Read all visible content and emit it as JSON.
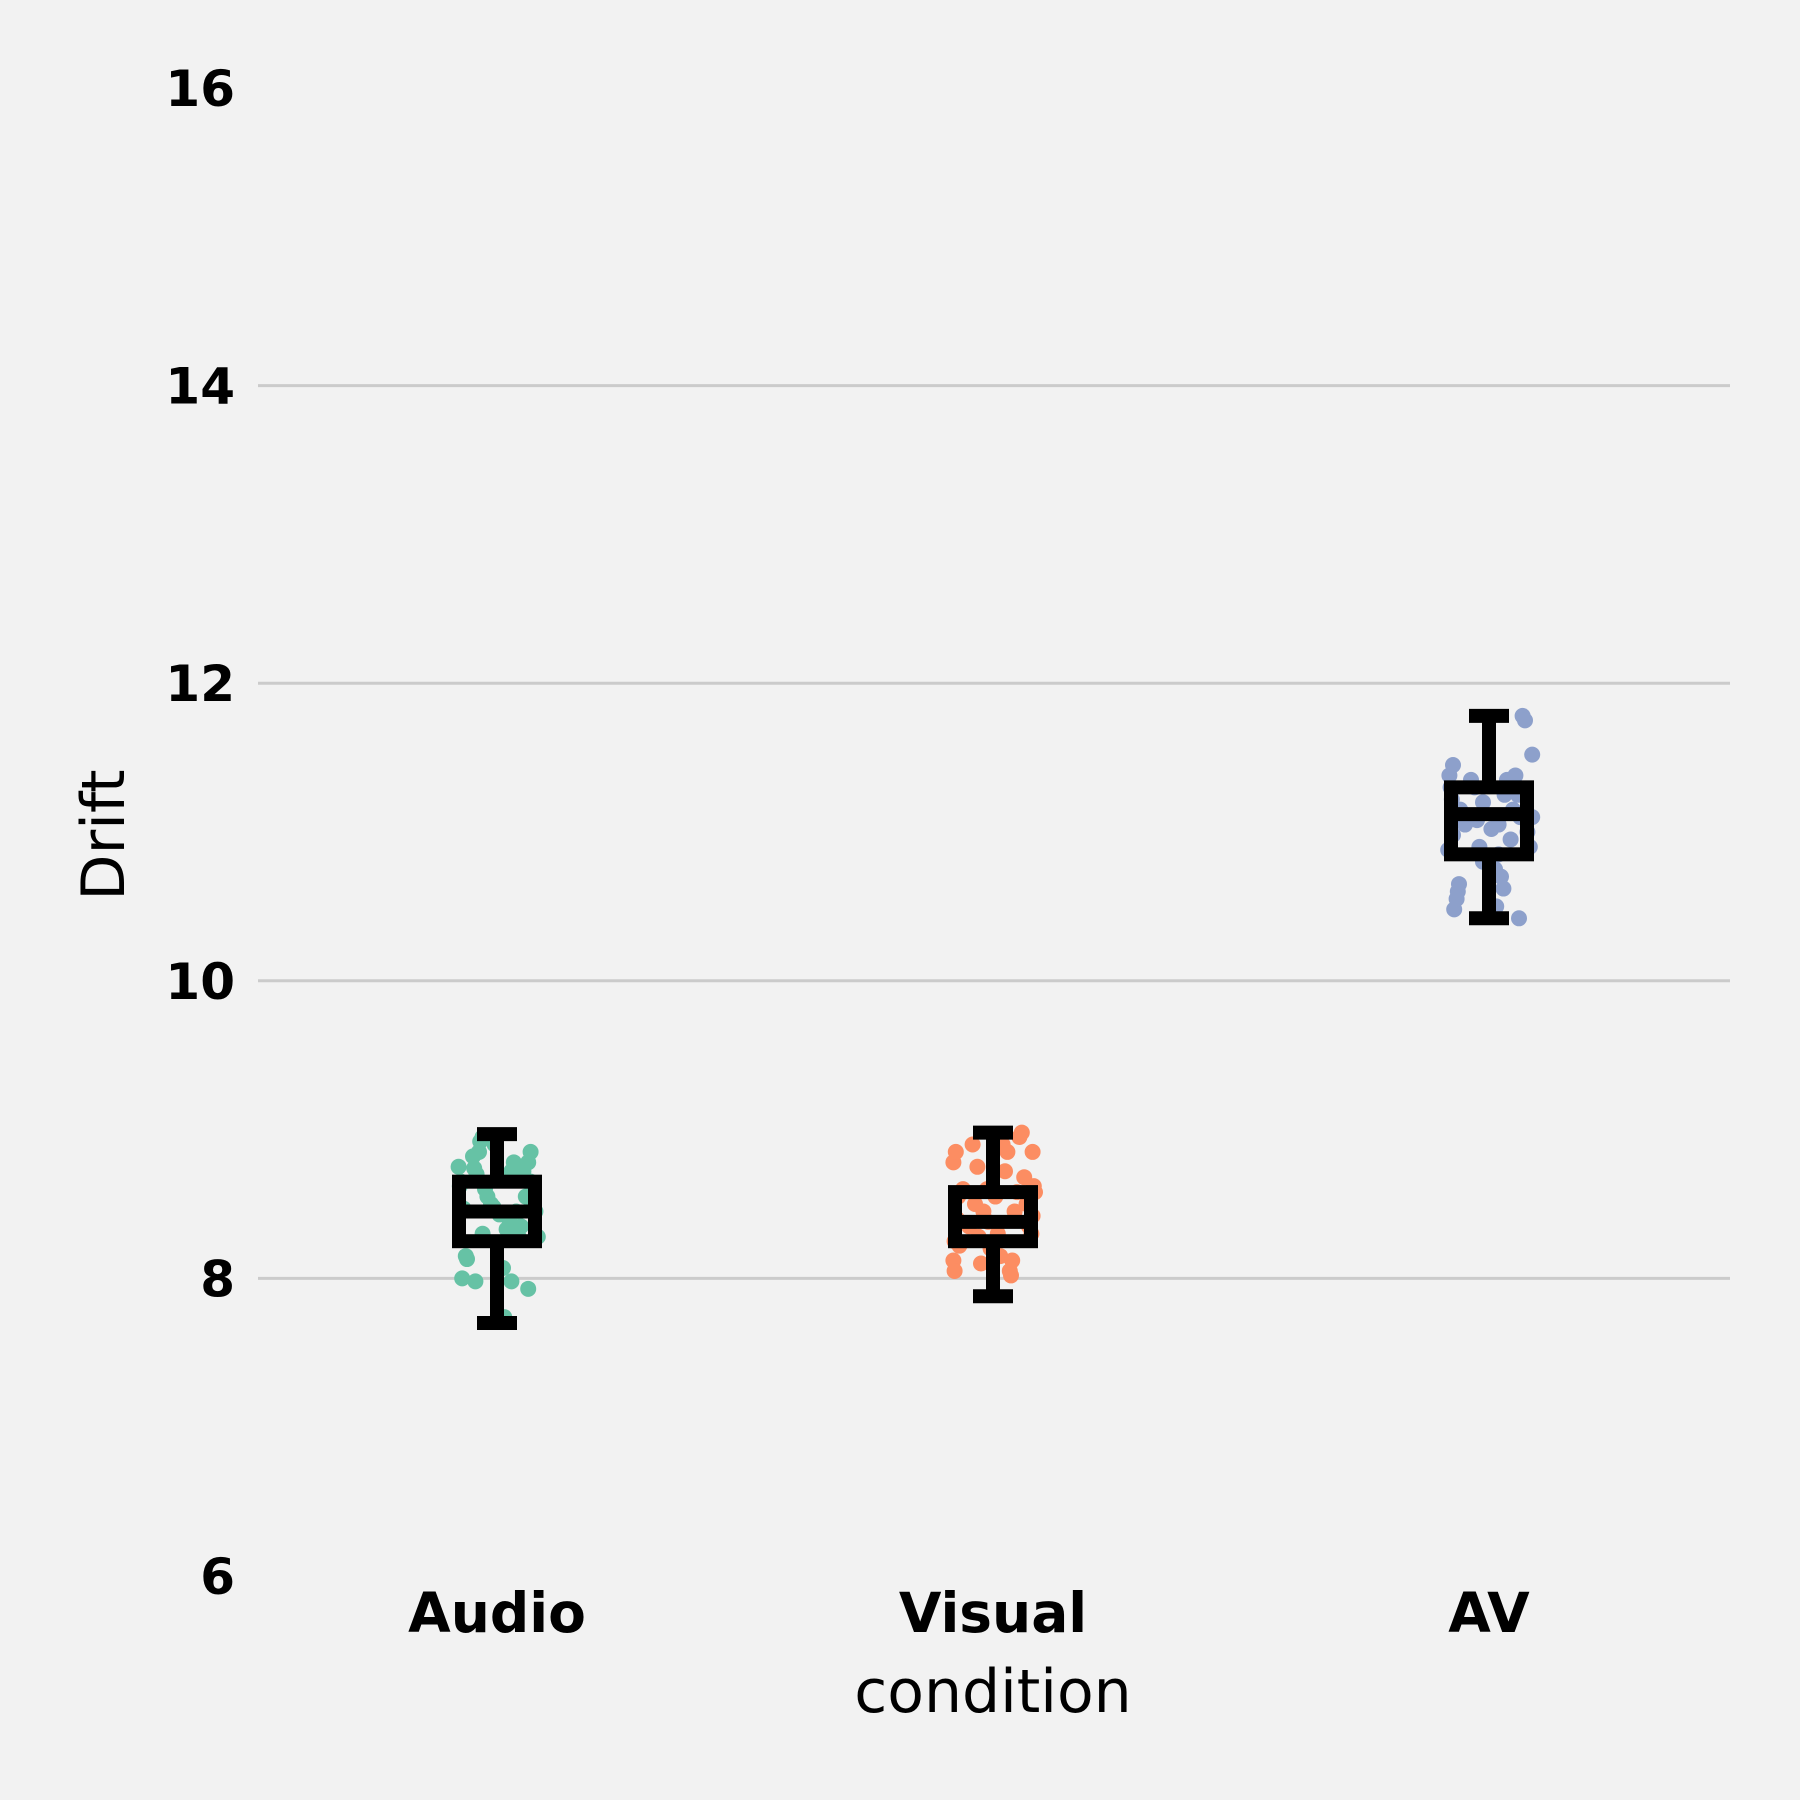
{
  "chart_data": {
    "type": "box-strip",
    "title": "",
    "xlabel": "condition",
    "ylabel": "Drift",
    "ylim": [
      6,
      16
    ],
    "yticks": [
      6,
      8,
      10,
      12,
      14,
      16
    ],
    "grid": true,
    "categories": [
      "Audio",
      "Visual",
      "AV"
    ],
    "colors": {
      "Audio": "#66c2a5",
      "Visual": "#fc8d62",
      "AV": "#8da0cb",
      "box": "#000000",
      "background": "#f2f2f2",
      "grid": "#cbcbcb"
    },
    "boxes": [
      {
        "category": "Audio",
        "whisker_low": 7.7,
        "q1": 8.25,
        "median": 8.45,
        "q3": 8.65,
        "whisker_high": 8.97
      },
      {
        "category": "Visual",
        "whisker_low": 7.88,
        "q1": 8.25,
        "median": 8.38,
        "q3": 8.58,
        "whisker_high": 8.98
      },
      {
        "category": "AV",
        "whisker_low": 10.42,
        "q1": 10.85,
        "median": 11.12,
        "q3": 11.3,
        "whisker_high": 11.78
      }
    ],
    "points": {
      "Audio": [
        {
          "j": -0.32,
          "y": 8.75
        },
        {
          "j": -0.3,
          "y": 8.65
        },
        {
          "j": -0.31,
          "y": 8.62
        },
        {
          "j": -0.28,
          "y": 8.47
        },
        {
          "j": -0.26,
          "y": 8.15
        },
        {
          "j": -0.25,
          "y": 8.13
        },
        {
          "j": -0.29,
          "y": 8.0
        },
        {
          "j": -0.2,
          "y": 8.82
        },
        {
          "j": -0.19,
          "y": 8.74
        },
        {
          "j": -0.17,
          "y": 8.7
        },
        {
          "j": -0.15,
          "y": 8.85
        },
        {
          "j": -0.14,
          "y": 8.92
        },
        {
          "j": -0.12,
          "y": 8.95
        },
        {
          "j": -0.1,
          "y": 8.6
        },
        {
          "j": -0.08,
          "y": 8.55
        },
        {
          "j": -0.05,
          "y": 8.5
        },
        {
          "j": -0.03,
          "y": 8.48
        },
        {
          "j": -0.12,
          "y": 8.3
        },
        {
          "j": -0.18,
          "y": 7.98
        },
        {
          "j": 0.02,
          "y": 8.43
        },
        {
          "j": 0.05,
          "y": 8.07
        },
        {
          "j": 0.08,
          "y": 8.33
        },
        {
          "j": 0.1,
          "y": 8.4
        },
        {
          "j": 0.12,
          "y": 8.72
        },
        {
          "j": 0.14,
          "y": 8.78
        },
        {
          "j": 0.16,
          "y": 8.45
        },
        {
          "j": 0.18,
          "y": 8.28
        },
        {
          "j": 0.2,
          "y": 8.35
        },
        {
          "j": 0.22,
          "y": 8.72
        },
        {
          "j": 0.24,
          "y": 8.55
        },
        {
          "j": 0.26,
          "y": 8.78
        },
        {
          "j": 0.28,
          "y": 8.65
        },
        {
          "j": 0.3,
          "y": 8.5
        },
        {
          "j": 0.32,
          "y": 8.45
        },
        {
          "j": 0.34,
          "y": 8.28
        },
        {
          "j": 0.28,
          "y": 8.85
        },
        {
          "j": 0.12,
          "y": 7.98
        },
        {
          "j": 0.06,
          "y": 7.74
        },
        {
          "j": 0.26,
          "y": 7.93
        },
        {
          "j": -0.02,
          "y": 8.9
        }
      ],
      "Visual": [
        {
          "j": -0.33,
          "y": 8.78
        },
        {
          "j": -0.31,
          "y": 8.85
        },
        {
          "j": -0.32,
          "y": 8.25
        },
        {
          "j": -0.33,
          "y": 8.12
        },
        {
          "j": -0.32,
          "y": 8.05
        },
        {
          "j": -0.3,
          "y": 8.4
        },
        {
          "j": -0.29,
          "y": 8.55
        },
        {
          "j": -0.28,
          "y": 8.22
        },
        {
          "j": -0.25,
          "y": 8.6
        },
        {
          "j": -0.2,
          "y": 8.35
        },
        {
          "j": -0.17,
          "y": 8.9
        },
        {
          "j": -0.15,
          "y": 8.5
        },
        {
          "j": -0.13,
          "y": 8.75
        },
        {
          "j": -0.1,
          "y": 8.1
        },
        {
          "j": -0.08,
          "y": 8.45
        },
        {
          "j": -0.05,
          "y": 8.6
        },
        {
          "j": -0.04,
          "y": 8.38
        },
        {
          "j": 0.02,
          "y": 8.55
        },
        {
          "j": 0.04,
          "y": 8.3
        },
        {
          "j": 0.06,
          "y": 8.15
        },
        {
          "j": 0.1,
          "y": 8.72
        },
        {
          "j": 0.12,
          "y": 8.85
        },
        {
          "j": 0.14,
          "y": 8.05
        },
        {
          "j": 0.16,
          "y": 8.12
        },
        {
          "j": 0.18,
          "y": 8.45
        },
        {
          "j": 0.2,
          "y": 8.58
        },
        {
          "j": 0.22,
          "y": 8.95
        },
        {
          "j": 0.24,
          "y": 8.98
        },
        {
          "j": 0.26,
          "y": 8.68
        },
        {
          "j": 0.28,
          "y": 8.5
        },
        {
          "j": 0.3,
          "y": 8.35
        },
        {
          "j": 0.33,
          "y": 8.85
        },
        {
          "j": 0.34,
          "y": 8.62
        },
        {
          "j": 0.35,
          "y": 8.58
        },
        {
          "j": 0.33,
          "y": 8.42
        },
        {
          "j": 0.32,
          "y": 8.3
        },
        {
          "j": 0.08,
          "y": 8.9
        },
        {
          "j": -0.02,
          "y": 8.2
        },
        {
          "j": 0.15,
          "y": 8.02
        },
        {
          "j": -0.12,
          "y": 8.28
        }
      ],
      "AV": [
        {
          "j": -0.34,
          "y": 10.88
        },
        {
          "j": -0.33,
          "y": 11.38
        },
        {
          "j": -0.32,
          "y": 11.3
        },
        {
          "j": -0.31,
          "y": 11.22
        },
        {
          "j": -0.3,
          "y": 11.45
        },
        {
          "j": -0.3,
          "y": 10.98
        },
        {
          "j": -0.29,
          "y": 10.48
        },
        {
          "j": -0.27,
          "y": 10.55
        },
        {
          "j": -0.26,
          "y": 10.6
        },
        {
          "j": -0.25,
          "y": 10.65
        },
        {
          "j": -0.24,
          "y": 11.15
        },
        {
          "j": -0.2,
          "y": 11.05
        },
        {
          "j": -0.15,
          "y": 11.35
        },
        {
          "j": -0.12,
          "y": 11.3
        },
        {
          "j": -0.1,
          "y": 11.08
        },
        {
          "j": -0.08,
          "y": 10.9
        },
        {
          "j": -0.05,
          "y": 11.2
        },
        {
          "j": 0.02,
          "y": 11.02
        },
        {
          "j": 0.05,
          "y": 10.75
        },
        {
          "j": 0.06,
          "y": 10.5
        },
        {
          "j": 0.08,
          "y": 10.85
        },
        {
          "j": 0.08,
          "y": 11.05
        },
        {
          "j": 0.1,
          "y": 10.7
        },
        {
          "j": 0.12,
          "y": 10.62
        },
        {
          "j": 0.13,
          "y": 11.25
        },
        {
          "j": 0.15,
          "y": 11.35
        },
        {
          "j": 0.18,
          "y": 11.32
        },
        {
          "j": 0.2,
          "y": 11.15
        },
        {
          "j": 0.22,
          "y": 11.38
        },
        {
          "j": 0.24,
          "y": 11.25
        },
        {
          "j": 0.25,
          "y": 10.42
        },
        {
          "j": 0.26,
          "y": 11.1
        },
        {
          "j": 0.28,
          "y": 11.78
        },
        {
          "j": 0.3,
          "y": 11.75
        },
        {
          "j": 0.32,
          "y": 11.0
        },
        {
          "j": 0.34,
          "y": 10.9
        },
        {
          "j": 0.36,
          "y": 11.1
        },
        {
          "j": 0.36,
          "y": 11.52
        },
        {
          "j": 0.18,
          "y": 10.95
        },
        {
          "j": -0.05,
          "y": 10.8
        }
      ]
    }
  }
}
